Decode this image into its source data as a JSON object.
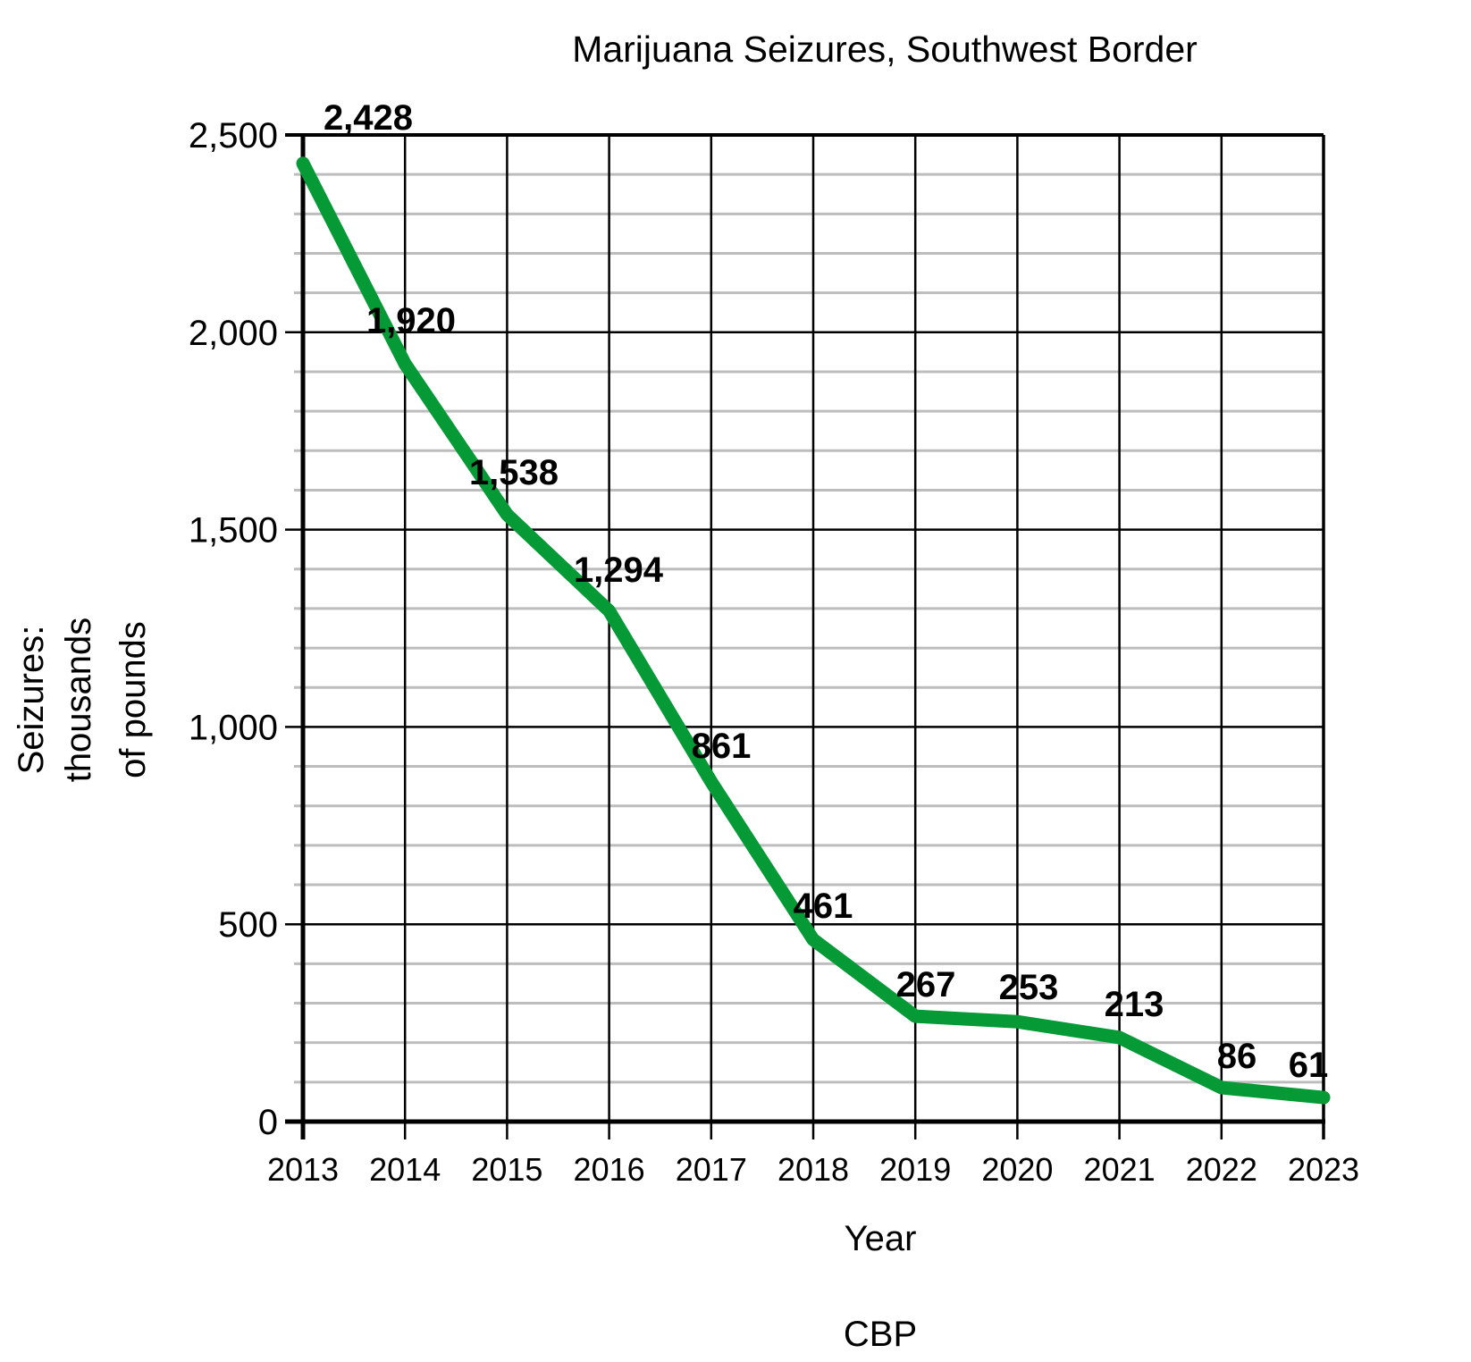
{
  "chart_data": {
    "type": "line",
    "title": "Marijuana Seizures, Southwest Border",
    "xlabel": "Year",
    "ylabel": [
      "Seizures:",
      "thousands",
      "of pounds"
    ],
    "source": "CBP",
    "categories": [
      "2013",
      "2014",
      "2015",
      "2016",
      "2017",
      "2018",
      "2019",
      "2020",
      "2021",
      "2022",
      "2023"
    ],
    "series": [
      {
        "name": "Marijuana Seizures (thousands of pounds)",
        "values": [
          2428,
          1920,
          1538,
          1294,
          861,
          461,
          267,
          253,
          213,
          86,
          61
        ],
        "labels": [
          "2,428",
          "1,920",
          "1,538",
          "1,294",
          "861",
          "461",
          "267",
          "253",
          "213",
          "86",
          "61"
        ],
        "color": "#059a36"
      }
    ],
    "ylim": [
      0,
      2500
    ],
    "y_ticks": [
      0,
      500,
      1000,
      1500,
      2000,
      2500
    ],
    "y_tick_labels": [
      "0",
      "500",
      "1,000",
      "1,500",
      "2,000",
      "2,500"
    ],
    "minor_gridlines_step": 100,
    "grid": true,
    "legend": "none"
  },
  "colors": {
    "line": "#059a36",
    "major_grid": "#000000",
    "minor_grid": "#bdbdbd"
  }
}
